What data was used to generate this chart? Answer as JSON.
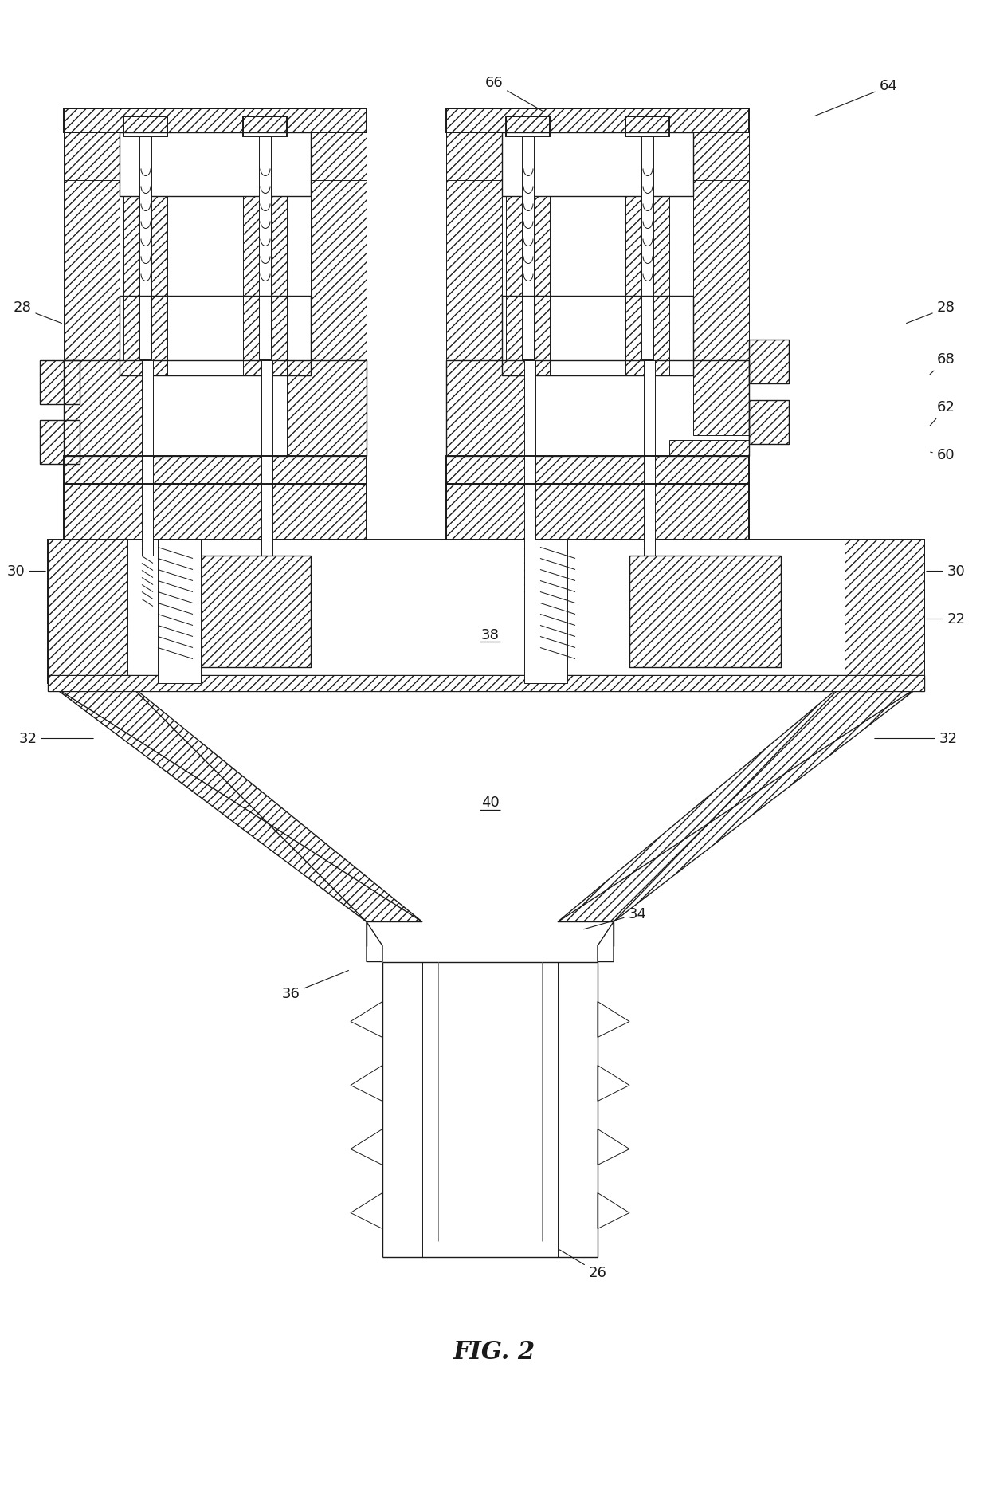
{
  "title": "FIG. 2",
  "bg_color": "#ffffff",
  "lc": "#1a1a1a",
  "lw": 1.0,
  "lw2": 0.7,
  "lw3": 1.4
}
